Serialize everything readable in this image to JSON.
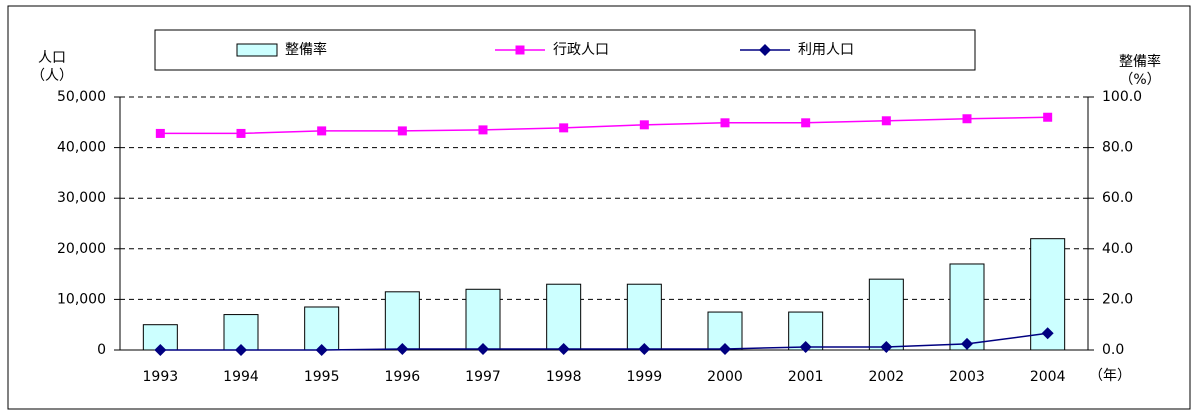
{
  "chart_data": {
    "type": "bar",
    "ylabel": "人口",
    "yunit": "（人）",
    "y2label": "整備率",
    "y2unit": "（%）",
    "xunit": "（年）",
    "categories": [
      "1993",
      "1994",
      "1995",
      "1996",
      "1997",
      "1998",
      "1999",
      "2000",
      "2001",
      "2002",
      "2003",
      "2004"
    ],
    "series": [
      {
        "name": "整備率",
        "type": "bar",
        "axis": "y2",
        "color": "#ccffff",
        "values": [
          10,
          14,
          17,
          23,
          24,
          26,
          26,
          15,
          15,
          28,
          34,
          44
        ]
      },
      {
        "name": "行政人口",
        "type": "line",
        "marker": "square",
        "color": "#ff00ff",
        "values": [
          42800,
          42800,
          43300,
          43300,
          43500,
          43900,
          44500,
          44900,
          44900,
          45300,
          45700,
          46000
        ]
      },
      {
        "name": "利用人口",
        "type": "line",
        "marker": "diamond",
        "color": "#000080",
        "values": [
          0,
          0,
          0,
          200,
          200,
          200,
          200,
          200,
          600,
          600,
          1200,
          3300
        ]
      }
    ],
    "ylim": [
      0,
      50000
    ],
    "yticks": [
      0,
      {
        "value": 10000,
        "label": "10,000"
      },
      {
        "value": 20000,
        "label": "20,000"
      },
      {
        "value": 30000,
        "label": "30,000"
      },
      {
        "value": 40000,
        "label": "40,000"
      },
      {
        "value": 50000,
        "label": "50,000"
      }
    ],
    "y2lim": [
      0,
      100
    ],
    "y2ticks": [
      {
        "value": 0,
        "label": "0.0"
      },
      {
        "value": 20,
        "label": "20.0"
      },
      {
        "value": 40,
        "label": "40.0"
      },
      {
        "value": 60,
        "label": "60.0"
      },
      {
        "value": 80,
        "label": "80.0"
      },
      {
        "value": 100,
        "label": "100.0"
      }
    ],
    "grid": true,
    "legend": "top"
  }
}
